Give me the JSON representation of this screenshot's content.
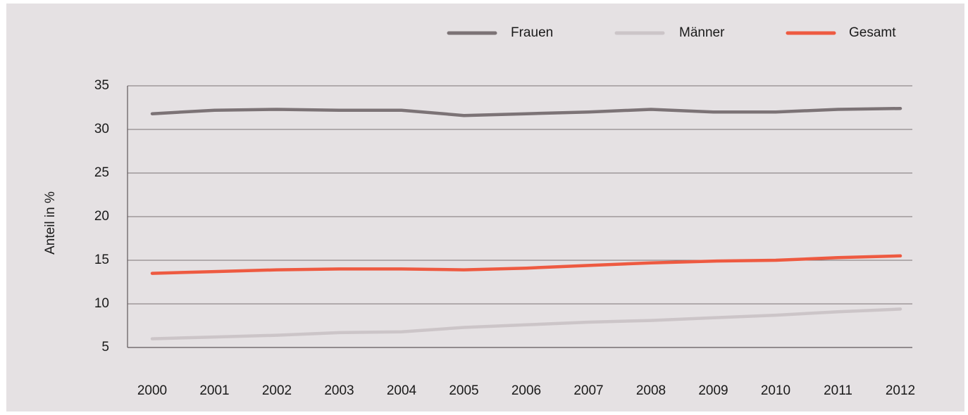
{
  "chart_data": {
    "type": "line",
    "ylabel": "Anteil in %",
    "xlabel": "",
    "x": [
      "2000",
      "2001",
      "2002",
      "2003",
      "2004",
      "2005",
      "2006",
      "2007",
      "2008",
      "2009",
      "2010",
      "2011",
      "2012"
    ],
    "y_ticks": [
      "35",
      "30",
      "25",
      "20",
      "15",
      "10",
      "5"
    ],
    "ylim": [
      5,
      35
    ],
    "grid": "horizontal",
    "legend_position": "top-right",
    "series": [
      {
        "name": "Frauen",
        "color": "#7c7376",
        "values": [
          31.8,
          32.2,
          32.3,
          32.2,
          32.2,
          31.6,
          31.8,
          32.0,
          32.3,
          32.0,
          32.0,
          32.3,
          32.4
        ]
      },
      {
        "name": "Männer",
        "color": "#ccc5c8",
        "values": [
          6.0,
          6.2,
          6.4,
          6.7,
          6.8,
          7.3,
          7.6,
          7.9,
          8.1,
          8.4,
          8.7,
          9.1,
          9.4
        ]
      },
      {
        "name": "Gesamt",
        "color": "#ee5a41",
        "values": [
          13.5,
          13.7,
          13.9,
          14.0,
          14.0,
          13.9,
          14.1,
          14.4,
          14.7,
          14.9,
          15.0,
          15.3,
          15.5
        ]
      }
    ]
  }
}
